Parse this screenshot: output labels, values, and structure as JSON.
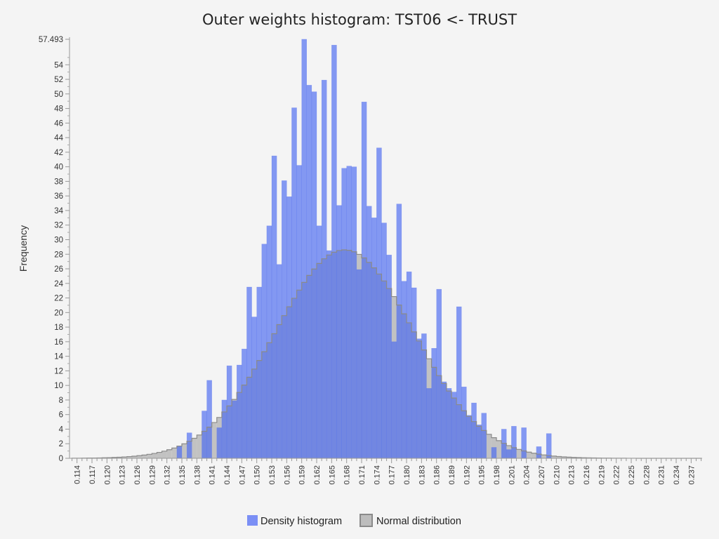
{
  "chart_data": {
    "type": "bar",
    "title": "Outer weights histogram: TST06 <- TRUST",
    "xlabel": "",
    "ylabel": "Frequency",
    "xlim": [
      0.1125,
      0.2392
    ],
    "ylim": [
      0,
      57.493
    ],
    "y_max_label": "57.493",
    "y_ticks": [
      0,
      2,
      4,
      6,
      8,
      10,
      12,
      14,
      16,
      18,
      20,
      22,
      24,
      26,
      28,
      30,
      32,
      34,
      36,
      38,
      40,
      42,
      44,
      46,
      48,
      50,
      52,
      54
    ],
    "x_ticks": [
      "0.114",
      "0.117",
      "0.120",
      "0.123",
      "0.126",
      "0.129",
      "0.132",
      "0.135",
      "0.138",
      "0.141",
      "0.144",
      "0.147",
      "0.150",
      "0.153",
      "0.156",
      "0.159",
      "0.162",
      "0.165",
      "0.168",
      "0.171",
      "0.174",
      "0.177",
      "0.180",
      "0.183",
      "0.186",
      "0.189",
      "0.192",
      "0.195",
      "0.198",
      "0.201",
      "0.204",
      "0.207",
      "0.210",
      "0.213",
      "0.216",
      "0.219",
      "0.222",
      "0.225",
      "0.228",
      "0.231",
      "0.234",
      "0.237"
    ],
    "grid": false,
    "legend_position": "bottom",
    "bin_width": 0.001,
    "series": [
      {
        "name": "Density histogram",
        "color": "#7b8ff5",
        "x": [
          0.1345,
          0.1365,
          0.1395,
          0.1405,
          0.1425,
          0.1435,
          0.1445,
          0.1455,
          0.1465,
          0.1475,
          0.1485,
          0.1495,
          0.1505,
          0.1515,
          0.1525,
          0.1535,
          0.1545,
          0.1555,
          0.1565,
          0.1575,
          0.1585,
          0.1595,
          0.1605,
          0.1615,
          0.1625,
          0.1635,
          0.1645,
          0.1655,
          0.1665,
          0.1675,
          0.1685,
          0.1695,
          0.1705,
          0.1715,
          0.1725,
          0.1735,
          0.1745,
          0.1755,
          0.1765,
          0.1775,
          0.1785,
          0.1795,
          0.1805,
          0.1815,
          0.1825,
          0.1835,
          0.1845,
          0.1855,
          0.1865,
          0.1875,
          0.1885,
          0.1895,
          0.1905,
          0.1915,
          0.1925,
          0.1935,
          0.1945,
          0.1955,
          0.1975,
          0.1995,
          0.2005,
          0.2015,
          0.2035,
          0.2065,
          0.2085
        ],
        "values": [
          1.7,
          3.5,
          6.5,
          10.7,
          4.2,
          8.0,
          12.7,
          7.9,
          12.8,
          15.0,
          23.5,
          19.4,
          23.5,
          29.4,
          31.9,
          41.5,
          26.6,
          38.1,
          35.9,
          48.1,
          40.2,
          57.5,
          51.2,
          50.3,
          31.9,
          51.9,
          28.5,
          56.7,
          34.7,
          39.8,
          40.1,
          40.0,
          25.9,
          48.9,
          34.6,
          33.0,
          42.6,
          32.3,
          27.9,
          16.0,
          34.9,
          24.3,
          25.6,
          23.4,
          16.4,
          17.1,
          9.6,
          15.1,
          23.2,
          10.5,
          9.6,
          9.1,
          20.8,
          9.8,
          5.9,
          7.6,
          4.6,
          6.2,
          1.5,
          4.0,
          1.2,
          4.4,
          4.2,
          1.6,
          3.4
        ]
      },
      {
        "name": "Normal distribution",
        "color": "#bdbdbd",
        "mean": 0.1676,
        "sd": 0.0139,
        "peak": 28.6
      }
    ]
  }
}
